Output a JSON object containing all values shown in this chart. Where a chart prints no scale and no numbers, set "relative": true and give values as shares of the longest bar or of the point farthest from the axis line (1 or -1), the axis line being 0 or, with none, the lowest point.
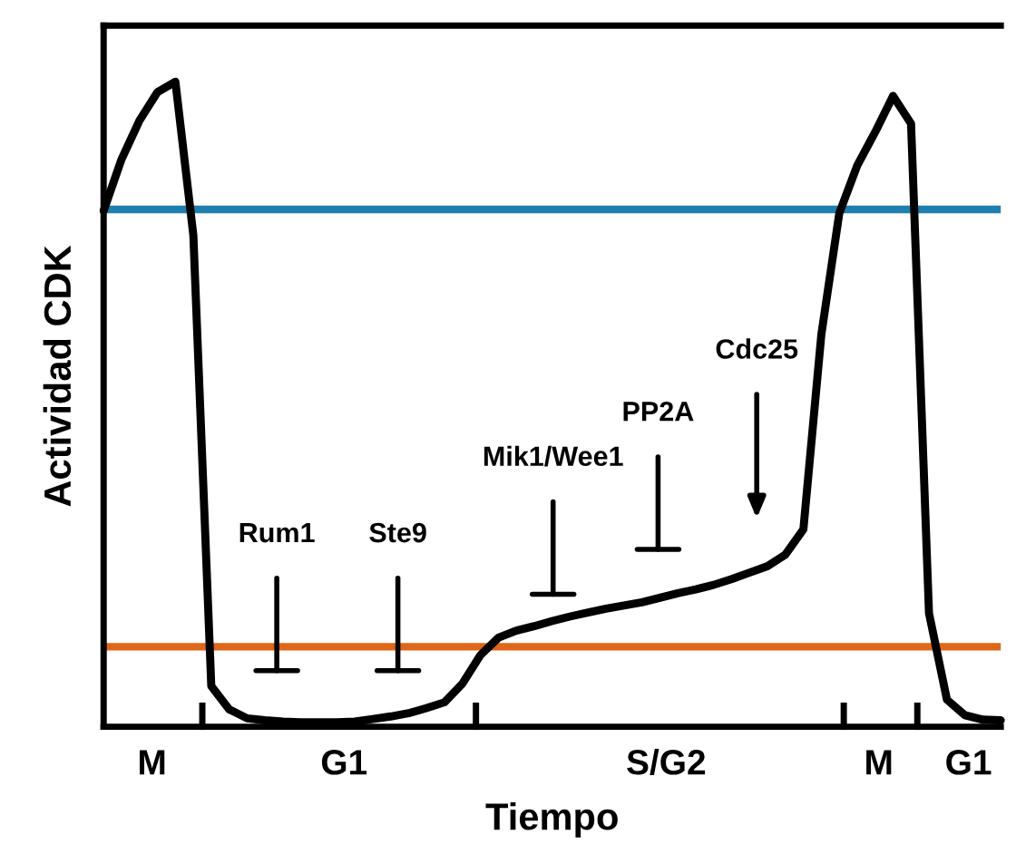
{
  "chart_data": {
    "type": "line",
    "relative": true,
    "xlabel": "Tiempo",
    "ylabel": "Actividad CDK",
    "categories": [
      null,
      null,
      null,
      null,
      null,
      null,
      null,
      null,
      null,
      null,
      null,
      null,
      null,
      null,
      null,
      null,
      null,
      null,
      null,
      null,
      null,
      null,
      null,
      null,
      null,
      null,
      null,
      null,
      null,
      null,
      null,
      null,
      null,
      null,
      null,
      null,
      null,
      null,
      null,
      null,
      null,
      null,
      null,
      null,
      null,
      null,
      null,
      null,
      null,
      null,
      null
    ],
    "series": [
      {
        "color": "#000000",
        "values": [
          0.8,
          0.88,
          0.94,
          0.984,
          1,
          0.762,
          0.063,
          0.027,
          0.013,
          0.01,
          0.008,
          0.007,
          0.007,
          0.007,
          0.008,
          0.012,
          0.016,
          0.021,
          0.029,
          0.038,
          0.067,
          0.111,
          0.138,
          0.149,
          0.156,
          0.164,
          0.171,
          0.177,
          0.183,
          0.188,
          0.193,
          0.2,
          0.207,
          0.213,
          0.22,
          0.229,
          0.239,
          0.249,
          0.267,
          0.306,
          0.608,
          0.796,
          0.87,
          0.922,
          0.978,
          0.935,
          0.176,
          0.042,
          0.018,
          0.011,
          0.01
        ]
      }
    ],
    "ref_lines": [
      {
        "axis": "y",
        "value": 0.802,
        "color": "#1f7fb0"
      },
      {
        "axis": "y",
        "value": 0.124,
        "color": "#e0661a"
      }
    ],
    "annotations": [
      "Rum1",
      "Ste9",
      "Mik1/Wee1",
      "PP2A",
      "Cdc25",
      "M",
      "G1",
      "S/G2",
      "M",
      "G1"
    ],
    "legend": false,
    "marker": "none",
    "line_style": "solid"
  }
}
